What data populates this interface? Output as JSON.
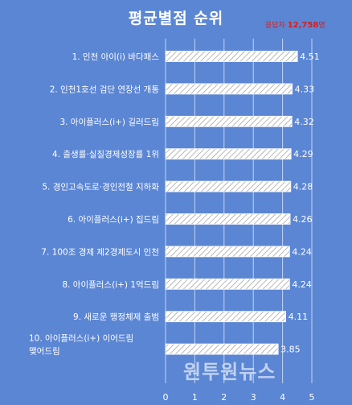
{
  "chart_data": {
    "type": "bar",
    "orientation": "horizontal",
    "title": "평균별점 순위",
    "categories": [
      "1. 인천 아이(i) 바다패스",
      "2. 인천1호선 검단 연장선 개통",
      "3. 아이플러스(i+) 길러드림",
      "4. 출생률·실질경제성장률 1위",
      "5. 경인고속도로·경인전철 지하화",
      "6. 아이플러스(i+) 집드림",
      "7. 100조 경제 제2경제도시 인천",
      "8. 아이플러스(i+) 1억드림",
      "9. 새로운 행정체제 출범",
      "10. 아이플러스(i+) 이어드림 맺어드림"
    ],
    "values": [
      4.51,
      4.33,
      4.32,
      4.29,
      4.28,
      4.26,
      4.24,
      4.24,
      4.11,
      3.85
    ],
    "value_labels": [
      "4.51",
      "4.33",
      "4.32",
      "4.29",
      "4.28",
      "4.26",
      "4.24",
      "4.24",
      "4.11",
      "3.85"
    ],
    "x_ticks": [
      "0",
      "1",
      "2",
      "3",
      "4",
      "5"
    ],
    "xlim": [
      0,
      5
    ],
    "grid": true,
    "legend": "none"
  },
  "respondents": {
    "label": "응답자",
    "count": "12,758",
    "unit": "명"
  },
  "watermark": "원투원뉴스",
  "colors": {
    "background": "#5b86d4",
    "bar": "#ffffff",
    "gridline": "#c5d4ee",
    "accent": "#d32020"
  }
}
